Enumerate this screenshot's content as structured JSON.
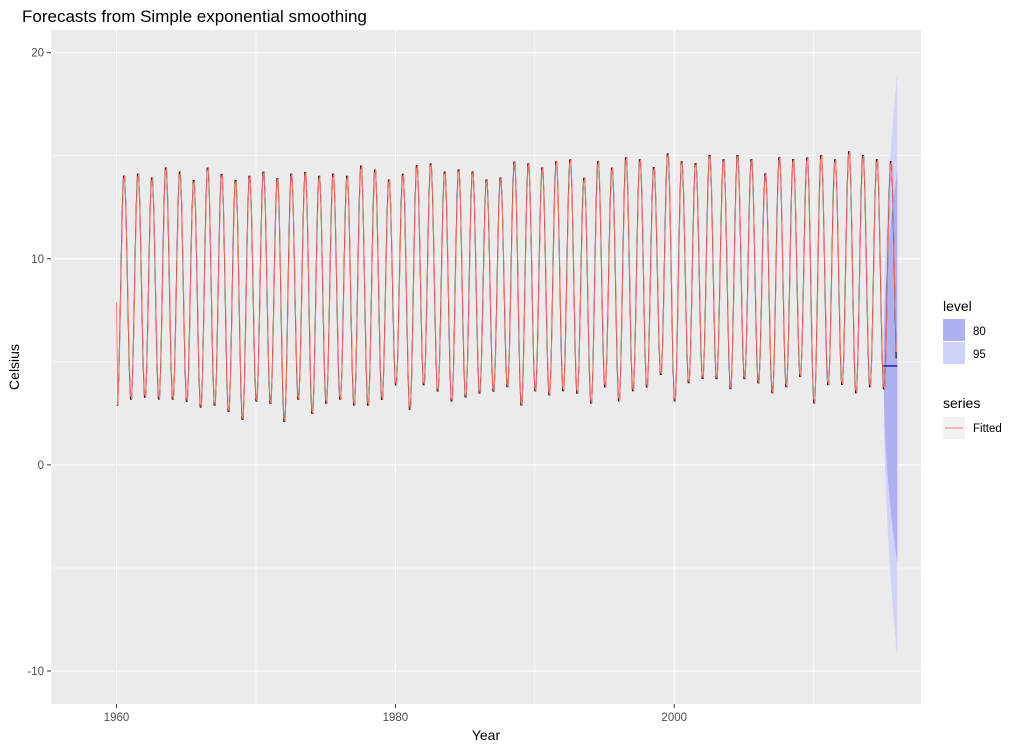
{
  "chart_data": {
    "type": "line",
    "title": "Forecasts from Simple exponential smoothing",
    "xlabel": "Year",
    "ylabel": "Celsius",
    "xlim": [
      1955.3,
      2017.7
    ],
    "ylim": [
      -11.6,
      21.1
    ],
    "x_ticks": [
      1960,
      1980,
      2000
    ],
    "y_ticks": [
      -10,
      0,
      10,
      20
    ],
    "grid": true,
    "legend_position": "right",
    "series": [
      {
        "name": "Fitted",
        "color": "#f8766d",
        "start_year": 1960,
        "frequency": 12,
        "annual_peaks": [
          14.2,
          14.3,
          14.1,
          14.6,
          14.4,
          14.0,
          14.6,
          14.3,
          14.0,
          14.2,
          14.4,
          14.1,
          14.3,
          14.4,
          14.2,
          14.3,
          14.2,
          14.7,
          14.5,
          14.0,
          14.3,
          14.7,
          14.8,
          14.4,
          14.5,
          14.4,
          14.0,
          14.1,
          14.9,
          14.8,
          14.6,
          14.9,
          15.0,
          14.1,
          14.9,
          14.6,
          15.1,
          15.0,
          14.6,
          15.3,
          14.9,
          14.8,
          15.2,
          15.0,
          15.2,
          15.0,
          14.3,
          15.1,
          15.0,
          15.1,
          15.2,
          15.0,
          15.4,
          15.2,
          15.0,
          14.9
        ],
        "annual_troughs": [
          2.7,
          3.0,
          3.1,
          3.0,
          3.0,
          2.9,
          2.6,
          2.7,
          2.4,
          2.0,
          2.9,
          2.8,
          1.9,
          3.0,
          2.3,
          2.8,
          3.0,
          2.7,
          2.7,
          3.0,
          3.7,
          2.5,
          3.7,
          3.4,
          2.9,
          3.1,
          3.3,
          3.4,
          3.6,
          2.7,
          3.4,
          3.2,
          3.4,
          3.3,
          2.8,
          3.6,
          2.9,
          3.4,
          3.6,
          4.2,
          2.9,
          3.8,
          4.0,
          4.0,
          3.5,
          4.0,
          3.8,
          3.3,
          3.6,
          4.1,
          2.8,
          3.7,
          3.7,
          3.3,
          3.6,
          3.5
        ]
      }
    ],
    "forecast": {
      "color": "#00008b",
      "point": 4.8,
      "start": 2015.0,
      "end": 2016.0,
      "lo80_end": -4.8,
      "hi80_end": 14.3,
      "lo95_end": -9.4,
      "hi95_end": 19.1
    },
    "legend": {
      "level_title": "level",
      "levels": [
        {
          "label": "80",
          "color": "#aeb1f0"
        },
        {
          "label": "95",
          "color": "#cfd3fa"
        }
      ],
      "series_title": "series",
      "series_label": "Fitted"
    },
    "colors": {
      "panel": "#ebebeb",
      "grid_major": "#ffffff",
      "observed": "#000000"
    }
  }
}
